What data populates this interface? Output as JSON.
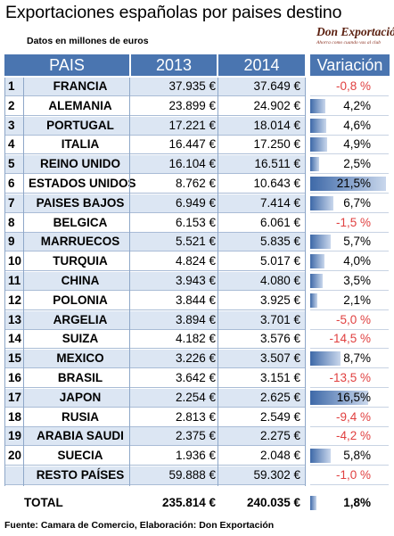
{
  "title": "Exportaciones españolas por paises destino",
  "subtitle": "Datos en millones de euros",
  "logo": {
    "main": "Don Exportación",
    "tagline": "Ahorra como cuando vas al club"
  },
  "headers": {
    "pais": "PAIS",
    "y2013": "2013",
    "y2014": "2014",
    "variacion": "Variación"
  },
  "colors": {
    "header_bg": "#4a75b0",
    "alt_row": "#dce6f3",
    "negative": "#e04040",
    "bar": "#3e69a8"
  },
  "chart_data": {
    "type": "table",
    "title": "Exportaciones españolas por paises destino",
    "subtitle": "Datos en millones de euros",
    "columns": [
      "PAIS",
      "2013",
      "2014",
      "Variación"
    ],
    "rows": [
      {
        "num": "1",
        "pais": "FRANCIA",
        "v2013": "37.935 €",
        "v2014": "37.649 €",
        "var": -0.8,
        "var_label": "-0,8 %"
      },
      {
        "num": "2",
        "pais": "ALEMANIA",
        "v2013": "23.899 €",
        "v2014": "24.902 €",
        "var": 4.2,
        "var_label": "4,2%"
      },
      {
        "num": "3",
        "pais": "PORTUGAL",
        "v2013": "17.221 €",
        "v2014": "18.014 €",
        "var": 4.6,
        "var_label": "4,6%"
      },
      {
        "num": "4",
        "pais": "ITALIA",
        "v2013": "16.447 €",
        "v2014": "17.250 €",
        "var": 4.9,
        "var_label": "4,9%"
      },
      {
        "num": "5",
        "pais": "REINO UNIDO",
        "v2013": "16.104 €",
        "v2014": "16.511 €",
        "var": 2.5,
        "var_label": "2,5%"
      },
      {
        "num": "6",
        "pais": "ESTADOS UNIDOS",
        "v2013": "8.762 €",
        "v2014": "10.643 €",
        "var": 21.5,
        "var_label": "21,5%"
      },
      {
        "num": "7",
        "pais": "PAISES BAJOS",
        "v2013": "6.949 €",
        "v2014": "7.414 €",
        "var": 6.7,
        "var_label": "6,7%"
      },
      {
        "num": "8",
        "pais": "BELGICA",
        "v2013": "6.153 €",
        "v2014": "6.061 €",
        "var": -1.5,
        "var_label": "-1,5 %"
      },
      {
        "num": "9",
        "pais": "MARRUECOS",
        "v2013": "5.521 €",
        "v2014": "5.835 €",
        "var": 5.7,
        "var_label": "5,7%"
      },
      {
        "num": "10",
        "pais": "TURQUIA",
        "v2013": "4.824 €",
        "v2014": "5.017 €",
        "var": 4.0,
        "var_label": "4,0%"
      },
      {
        "num": "11",
        "pais": "CHINA",
        "v2013": "3.943 €",
        "v2014": "4.080 €",
        "var": 3.5,
        "var_label": "3,5%"
      },
      {
        "num": "12",
        "pais": "POLONIA",
        "v2013": "3.844 €",
        "v2014": "3.925 €",
        "var": 2.1,
        "var_label": "2,1%"
      },
      {
        "num": "13",
        "pais": "ARGELIA",
        "v2013": "3.894 €",
        "v2014": "3.701 €",
        "var": -5.0,
        "var_label": "-5,0 %"
      },
      {
        "num": "14",
        "pais": "SUIZA",
        "v2013": "4.182 €",
        "v2014": "3.576 €",
        "var": -14.5,
        "var_label": "-14,5 %"
      },
      {
        "num": "15",
        "pais": "MEXICO",
        "v2013": "3.226 €",
        "v2014": "3.507 €",
        "var": 8.7,
        "var_label": "8,7%"
      },
      {
        "num": "16",
        "pais": "BRASIL",
        "v2013": "3.642 €",
        "v2014": "3.151 €",
        "var": -13.5,
        "var_label": "-13,5 %"
      },
      {
        "num": "17",
        "pais": "JAPON",
        "v2013": "2.254 €",
        "v2014": "2.625 €",
        "var": 16.5,
        "var_label": "16,5%"
      },
      {
        "num": "18",
        "pais": "RUSIA",
        "v2013": "2.813 €",
        "v2014": "2.549 €",
        "var": -9.4,
        "var_label": "-9,4 %"
      },
      {
        "num": "19",
        "pais": "ARABIA SAUDI",
        "v2013": "2.375 €",
        "v2014": "2.275 €",
        "var": -4.2,
        "var_label": "-4,2 %"
      },
      {
        "num": "20",
        "pais": "SUECIA",
        "v2013": "1.936 €",
        "v2014": "2.048 €",
        "var": 5.8,
        "var_label": "5,8%"
      },
      {
        "num": "",
        "pais": "RESTO PAÍSES",
        "v2013": "59.888 €",
        "v2014": "59.302 €",
        "var": -1.0,
        "var_label": "-1,0 %"
      }
    ],
    "total": {
      "label": "TOTAL",
      "v2013": "235.814 €",
      "v2014": "240.035 €",
      "var": 1.8,
      "var_label": "1,8%"
    }
  },
  "source": "Fuente: Camara de Comercio, Elaboración: Don Exportación"
}
